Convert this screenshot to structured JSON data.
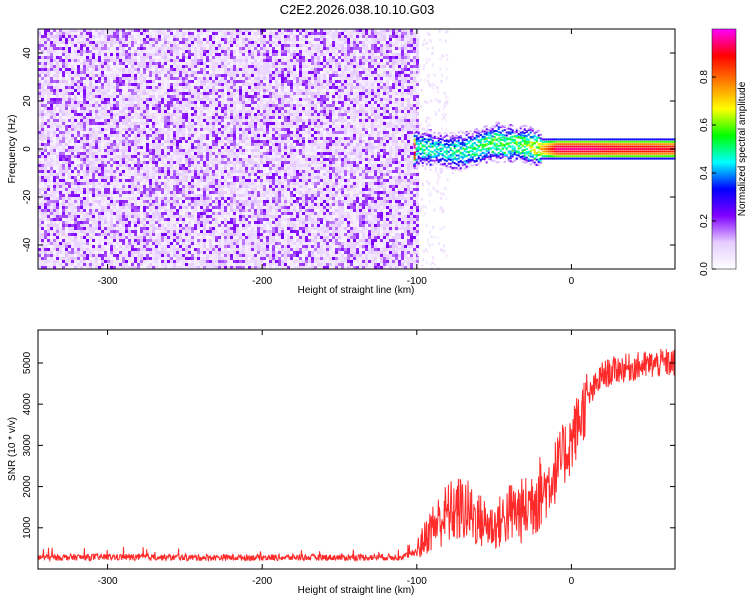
{
  "title": "C2E2.2026.038.10.10.G03",
  "chart_data": [
    {
      "type": "heatmap",
      "title": "C2E2.2026.038.10.10.G03",
      "xlabel": "Height of straight line (km)",
      "ylabel": "Frequency (Hz)",
      "xlim": [
        -345,
        67
      ],
      "ylim": [
        -50,
        50
      ],
      "xticks": [
        -300,
        -200,
        -100,
        0
      ],
      "yticks": [
        -40,
        -20,
        0,
        20,
        40
      ],
      "colorbar": {
        "label": "Normalized spectral amplitude",
        "range": [
          0,
          1
        ],
        "ticks": [
          "0.0",
          "0.2",
          "0.4",
          "0.6",
          "0.8"
        ],
        "colors": [
          "#ffffff",
          "#e6ccff",
          "#8000ff",
          "#0000ff",
          "#00ffff",
          "#00ff00",
          "#ffff00",
          "#ff8000",
          "#ff0000",
          "#ff00ff"
        ]
      },
      "noise_region": {
        "x_from": -345,
        "x_to": -100,
        "amplitude": 0.12
      },
      "signal_track": [
        {
          "x": -102,
          "freq": 1,
          "amp": 0.55
        },
        {
          "x": -90,
          "freq": 0,
          "amp": 0.5
        },
        {
          "x": -80,
          "freq": -1,
          "amp": 0.5
        },
        {
          "x": -70,
          "freq": -1,
          "amp": 0.52
        },
        {
          "x": -60,
          "freq": 1,
          "amp": 0.55
        },
        {
          "x": -50,
          "freq": 3,
          "amp": 0.58
        },
        {
          "x": -40,
          "freq": 2,
          "amp": 0.6
        },
        {
          "x": -30,
          "freq": 2,
          "amp": 0.6
        },
        {
          "x": -22,
          "freq": 0,
          "amp": 0.7
        },
        {
          "x": -10,
          "freq": 0,
          "amp": 0.95
        },
        {
          "x": 10,
          "freq": 0,
          "amp": 0.95
        },
        {
          "x": 30,
          "freq": 0,
          "amp": 0.92
        },
        {
          "x": 50,
          "freq": 0,
          "amp": 0.92
        },
        {
          "x": 67,
          "freq": 0,
          "amp": 0.9
        }
      ]
    },
    {
      "type": "line",
      "xlabel": "Height of straight line (km)",
      "ylabel": "SNR (10 * v/v)",
      "xlim": [
        -345,
        67
      ],
      "ylim": [
        0,
        5800
      ],
      "xticks": [
        -300,
        -200,
        -100,
        0
      ],
      "yticks": [
        1000,
        2000,
        3000,
        4000,
        5000
      ],
      "color": "#ff2a2a",
      "series": [
        {
          "name": "SNR",
          "x": [
            -345,
            -300,
            -250,
            -200,
            -150,
            -110,
            -100,
            -90,
            -80,
            -70,
            -60,
            -50,
            -40,
            -30,
            -25,
            -20,
            -15,
            -10,
            0,
            10,
            20,
            30,
            40,
            50,
            60,
            67
          ],
          "y": [
            280,
            290,
            280,
            280,
            280,
            290,
            400,
            900,
            1200,
            1300,
            1050,
            900,
            1200,
            1250,
            1500,
            1800,
            2050,
            2400,
            3100,
            4100,
            4700,
            4850,
            4900,
            4950,
            5000,
            5000
          ]
        }
      ]
    }
  ]
}
